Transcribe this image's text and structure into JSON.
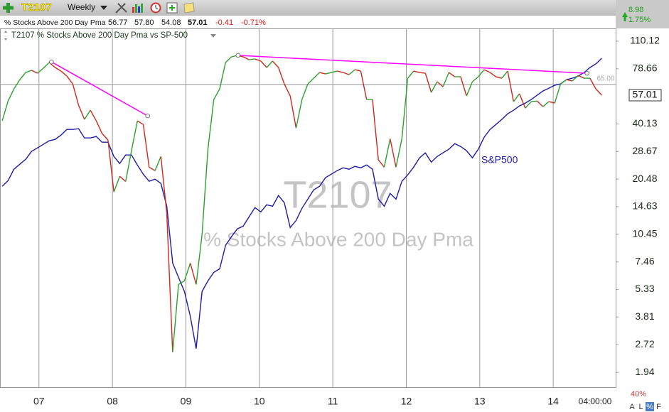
{
  "toolbar": {
    "symbol": "T2107",
    "period": "Weekly",
    "change": "8.98",
    "change_pct": "1.75%"
  },
  "quote": {
    "name": "% Stocks Above 200 Day Pma",
    "open": "56.77",
    "high": "57.80",
    "low": "54.08",
    "close": "57.01",
    "change": "-0.41",
    "change_pct": "-0.71%"
  },
  "chart_data": {
    "type": "line",
    "legend_title": "T2107 % Stocks Above 200 Day Pma vs SP-500",
    "watermark_name": "% Stocks Above 200 Day Pma",
    "log_scale": true,
    "x": [
      2006.5,
      2006.58,
      2006.66,
      2006.74,
      2006.82,
      2006.9,
      2006.98,
      2007.06,
      2007.14,
      2007.22,
      2007.3,
      2007.38,
      2007.46,
      2007.54,
      2007.62,
      2007.7,
      2007.78,
      2007.86,
      2007.94,
      2008.02,
      2008.1,
      2008.18,
      2008.26,
      2008.34,
      2008.42,
      2008.5,
      2008.58,
      2008.66,
      2008.74,
      2008.82,
      2008.9,
      2008.98,
      2009.06,
      2009.14,
      2009.22,
      2009.3,
      2009.38,
      2009.46,
      2009.54,
      2009.62,
      2009.7,
      2009.78,
      2009.86,
      2009.94,
      2010.02,
      2010.1,
      2010.18,
      2010.26,
      2010.34,
      2010.42,
      2010.5,
      2010.58,
      2010.66,
      2010.74,
      2010.82,
      2010.9,
      2010.98,
      2011.06,
      2011.14,
      2011.22,
      2011.3,
      2011.38,
      2011.46,
      2011.54,
      2011.62,
      2011.7,
      2011.78,
      2011.86,
      2011.94,
      2012.02,
      2012.1,
      2012.18,
      2012.26,
      2012.34,
      2012.42,
      2012.5,
      2012.58,
      2012.66,
      2012.74,
      2012.82,
      2012.9,
      2012.98,
      2013.06,
      2013.14,
      2013.22,
      2013.3,
      2013.38,
      2013.46,
      2013.54,
      2013.62,
      2013.7,
      2013.78,
      2013.86,
      2013.94,
      2014.02,
      2014.1,
      2014.18,
      2014.26,
      2014.34,
      2014.42,
      2014.5,
      2014.58,
      2014.66
    ],
    "xlim": [
      2006.47,
      2014.85
    ],
    "xticks": [
      {
        "value": 2007,
        "label": "07"
      },
      {
        "value": 2008,
        "label": "08"
      },
      {
        "value": 2009,
        "label": "09"
      },
      {
        "value": 2010,
        "label": "10"
      },
      {
        "value": 2011,
        "label": "11"
      },
      {
        "value": 2012,
        "label": "12"
      },
      {
        "value": 2013,
        "label": "13"
      },
      {
        "value": 2014,
        "label": "14"
      }
    ],
    "ylim": [
      1.62,
      126.5
    ],
    "yticks": [
      1.94,
      2.72,
      3.81,
      5.33,
      7.46,
      10.45,
      14.63,
      20.48,
      28.67,
      40.13,
      78.66,
      110.12
    ],
    "series": [
      {
        "name": "T2107",
        "up_color": "#2ca02c",
        "down_color": "#d0271d",
        "values": [
          41.7,
          53.1,
          61.6,
          68.9,
          75.2,
          77.2,
          74.5,
          79.2,
          84.9,
          79.9,
          76.5,
          72.0,
          65.4,
          50.4,
          42.4,
          47.5,
          41.7,
          35.7,
          33.0,
          17.5,
          21.2,
          19.9,
          29.0,
          41.7,
          39.9,
          23.7,
          22.7,
          27.0,
          13.5,
          2.48,
          5.67,
          5.92,
          7.35,
          5.67,
          10.41,
          29.5,
          54.1,
          61.6,
          84.9,
          91.0,
          92.6,
          91.0,
          87.9,
          88.7,
          86.4,
          79.9,
          86.4,
          79.9,
          65.4,
          56.5,
          38.2,
          54.1,
          65.4,
          70.1,
          75.2,
          73.9,
          75.2,
          76.5,
          75.2,
          73.2,
          77.8,
          76.5,
          54.1,
          54.1,
          25.9,
          23.7,
          33.5,
          23.7,
          33.5,
          70.1,
          76.5,
          75.2,
          74.5,
          59.0,
          67.2,
          63.2,
          75.2,
          71.4,
          71.4,
          56.5,
          67.2,
          71.4,
          77.8,
          75.2,
          71.4,
          70.1,
          76.5,
          52.7,
          58.0,
          48.7,
          52.7,
          53.1,
          49.6,
          52.7,
          51.8,
          65.4,
          68.9,
          67.8,
          72.6,
          70.1,
          70.1,
          61.6,
          57.01
        ]
      },
      {
        "name": "S&P500",
        "color": "#1c1ca8",
        "values": [
          18.77,
          20.12,
          23.11,
          24.55,
          26.09,
          28.71,
          29.98,
          31.3,
          32.69,
          33.26,
          35.04,
          37.56,
          37.56,
          37.88,
          33.84,
          33.84,
          34.43,
          32.13,
          32.13,
          27.0,
          24.77,
          27.48,
          27.48,
          24.34,
          21.75,
          19.94,
          20.47,
          19.43,
          14.72,
          7.35,
          6.18,
          5.2,
          3.84,
          2.59,
          5.2,
          5.92,
          6.57,
          6.86,
          9.14,
          10.14,
          11.16,
          11.55,
          12.92,
          14.47,
          13.73,
          14.98,
          14.72,
          16.76,
          15.37,
          11.35,
          12.37,
          14.34,
          16.05,
          17.97,
          18.77,
          20.83,
          21.75,
          22.71,
          23.51,
          23.11,
          23.92,
          23.51,
          24.34,
          23.11,
          16.05,
          14.72,
          17.2,
          16.05,
          19.94,
          21.56,
          23.7,
          26.54,
          28.21,
          25.2,
          27.0,
          28.21,
          29.5,
          31.57,
          30.5,
          28.96,
          26.54,
          29.5,
          34.14,
          37.56,
          39.91,
          42.41,
          45.45,
          47.46,
          50.01,
          51.8,
          54.06,
          56.96,
          60.0,
          62.12,
          64.31,
          65.44,
          68.94,
          70.14,
          71.98,
          75.18,
          79.88,
          83.43,
          89.42
        ]
      }
    ],
    "reference_line": {
      "value": 65,
      "label": "65.00",
      "color": "#aaaaaa"
    },
    "trendline_color": "#ff00ff",
    "trendlines": [
      {
        "x": [
          2007.17,
          2008.48
        ],
        "y": [
          85.6,
          44.3
        ]
      },
      {
        "x": [
          2009.71,
          2014.46
        ],
        "y": [
          92.6,
          74.5
        ]
      }
    ],
    "time_label": "04:00:00",
    "zoom_label": "40%",
    "scale_buttons": [
      "A",
      "L",
      "%",
      "F"
    ]
  }
}
